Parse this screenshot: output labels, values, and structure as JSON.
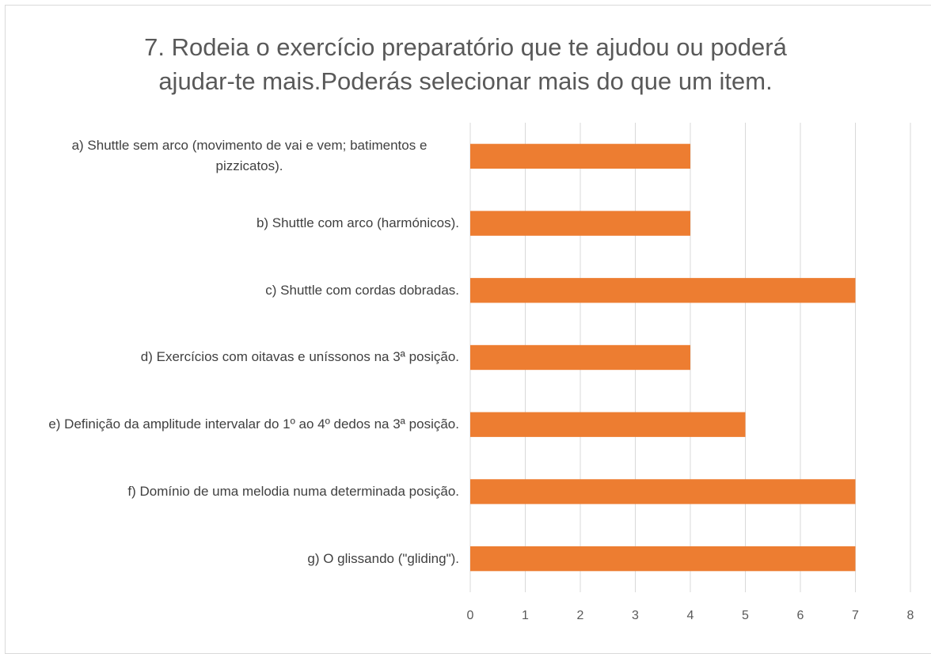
{
  "chart_data": {
    "type": "bar",
    "orientation": "horizontal",
    "title": "7. Rodeia o exercício preparatório que te ajudou ou poderá ajudar-te mais.Poderás selecionar mais do que um item.",
    "categories": [
      "a) Shuttle sem arco (movimento de vai e vem; batimentos e pizzicatos).",
      "b) Shuttle com arco (harmónicos).",
      "c) Shuttle com cordas dobradas.",
      "d) Exercícios com oitavas e uníssonos na 3ª posição.",
      "e) Definição da amplitude intervalar do 1º ao 4º dedos na 3ª posição.",
      "f) Domínio de uma melodia numa determinada posição.",
      "g) O glissando (\"gliding\")."
    ],
    "values": [
      4,
      4,
      7,
      4,
      5,
      7,
      7
    ],
    "color": "#ed7d31",
    "xlim": [
      0,
      8
    ],
    "xticks": [
      0,
      1,
      2,
      3,
      4,
      5,
      6,
      7,
      8
    ],
    "grid": true
  }
}
